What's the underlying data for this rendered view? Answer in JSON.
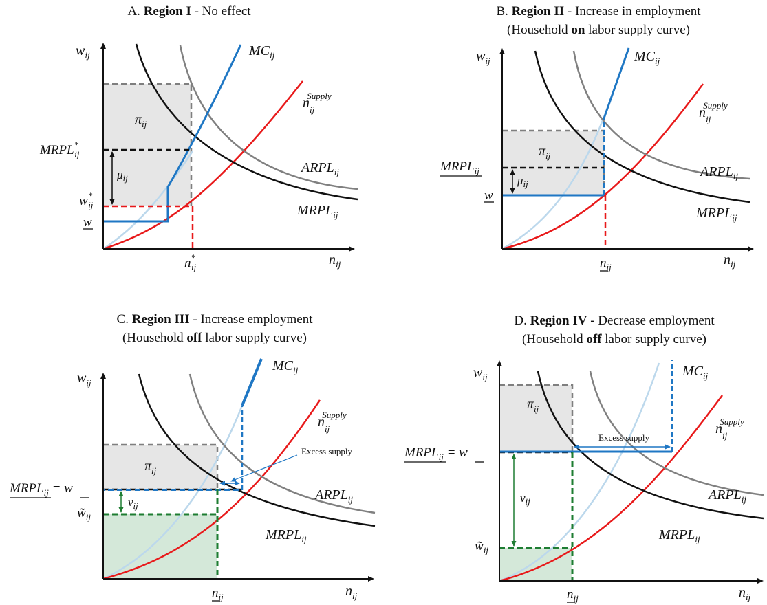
{
  "panels": [
    {
      "id": "A",
      "title": {
        "prefix": "A. ",
        "bold": "Region I",
        "suffix": " - No effect",
        "line2": null
      },
      "labels": {
        "y_axis": "w_ij",
        "x_axis": "n_ij",
        "mc": "MC_ij",
        "supply": "n_ij^Supply",
        "arpl": "ARPL_ij",
        "mrpl": "MRPL_ij",
        "profit": "π_ij",
        "markdown": "μ_ij",
        "y_mrpl": "MRPL*_ij",
        "y_w": "w*_ij",
        "y_wbar": "w",
        "x_n": "n*_ij"
      }
    },
    {
      "id": "B",
      "title": {
        "prefix": "B. ",
        "bold": "Region II",
        "suffix": " - Increase in employment",
        "line2": [
          "(Household ",
          "on",
          " labor supply curve)"
        ]
      },
      "labels": {
        "y_axis": "w_ij",
        "x_axis": "n_ij",
        "mc": "MC_ij",
        "supply": "n_ij^Supply",
        "arpl": "ARPL_ij",
        "mrpl": "MRPL_ij",
        "profit": "π_ij",
        "markdown": "μ_ij",
        "y_mrpl": "MRPL_ij",
        "y_wbar": "w",
        "x_n": "n_ij"
      }
    },
    {
      "id": "C",
      "title": {
        "prefix": "C. ",
        "bold": "Region III",
        "suffix": " - Increase employment",
        "line2": [
          "(Household ",
          "off",
          " labor supply curve)"
        ]
      },
      "labels": {
        "y_axis": "w_ij",
        "x_axis": "n_ij",
        "mc": "MC_ij",
        "supply": "n_ij^Supply",
        "arpl": "ARPL_ij",
        "mrpl": "MRPL_ij",
        "profit": "π_ij",
        "wedge": "ν_ij",
        "y_mrpl": "MRPL_ij = w",
        "y_wt": "w̃_ij",
        "x_n": "n_ij",
        "excess": "Excess supply"
      }
    },
    {
      "id": "D",
      "title": {
        "prefix": "D. ",
        "bold": "Region IV",
        "suffix": " - Decrease employment",
        "line2": [
          "(Household ",
          "off",
          " labor supply curve)"
        ]
      },
      "labels": {
        "y_axis": "w_ij",
        "x_axis": "n_ij",
        "mc": "MC_ij",
        "supply": "n_ij^Supply",
        "arpl": "ARPL_ij",
        "mrpl": "MRPL_ij",
        "profit": "π_ij",
        "wedge": "ν_ij",
        "y_mrpl": "MRPL_ij = w",
        "y_wt": "w̃_ij",
        "x_n": "n_ij",
        "excess": "Excess supply"
      }
    }
  ],
  "colors": {
    "axis": "#111111",
    "mrpl": "#111111",
    "arpl": "#808080",
    "supply": "#e8191a",
    "mc": "#1f77c4",
    "mc_light": "#bcd8ec",
    "profit_fill": "#e6e6e6",
    "profit_edge": "#7f7f7f",
    "green": "#1e7d32",
    "green_fill": "#d4e8d9"
  }
}
